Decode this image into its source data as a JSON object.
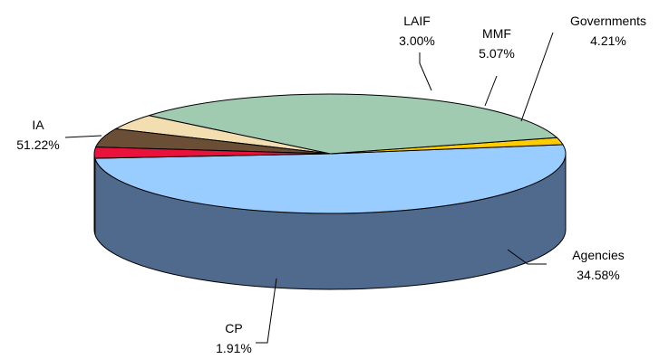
{
  "chart_data": {
    "type": "pie",
    "three_d": true,
    "legend": "none",
    "slices": [
      {
        "label": "IA",
        "value_text": "51.22%",
        "value": 51.22,
        "color": "#99ccff",
        "side_color": "#4f6a8c"
      },
      {
        "label": "CP",
        "value_text": "1.91%",
        "value": 1.91,
        "color": "#ffcc00",
        "side_color": "#8c6a00"
      },
      {
        "label": "Agencies",
        "value_text": "34.58%",
        "value": 34.58,
        "color": "#a0cbb0",
        "side_color": "#4f6b5a"
      },
      {
        "label": "Governments",
        "value_text": "4.21%",
        "value": 4.21,
        "color": "#f2deb0",
        "side_color": "#857a60"
      },
      {
        "label": "MMF",
        "value_text": "5.07%",
        "value": 5.07,
        "color": "#6b4e36",
        "side_color": "#3b2b1e"
      },
      {
        "label": "LAIF",
        "value_text": "3.00%",
        "value": 3.0,
        "color": "#e8123c",
        "side_color": "#7f0a21"
      }
    ]
  }
}
